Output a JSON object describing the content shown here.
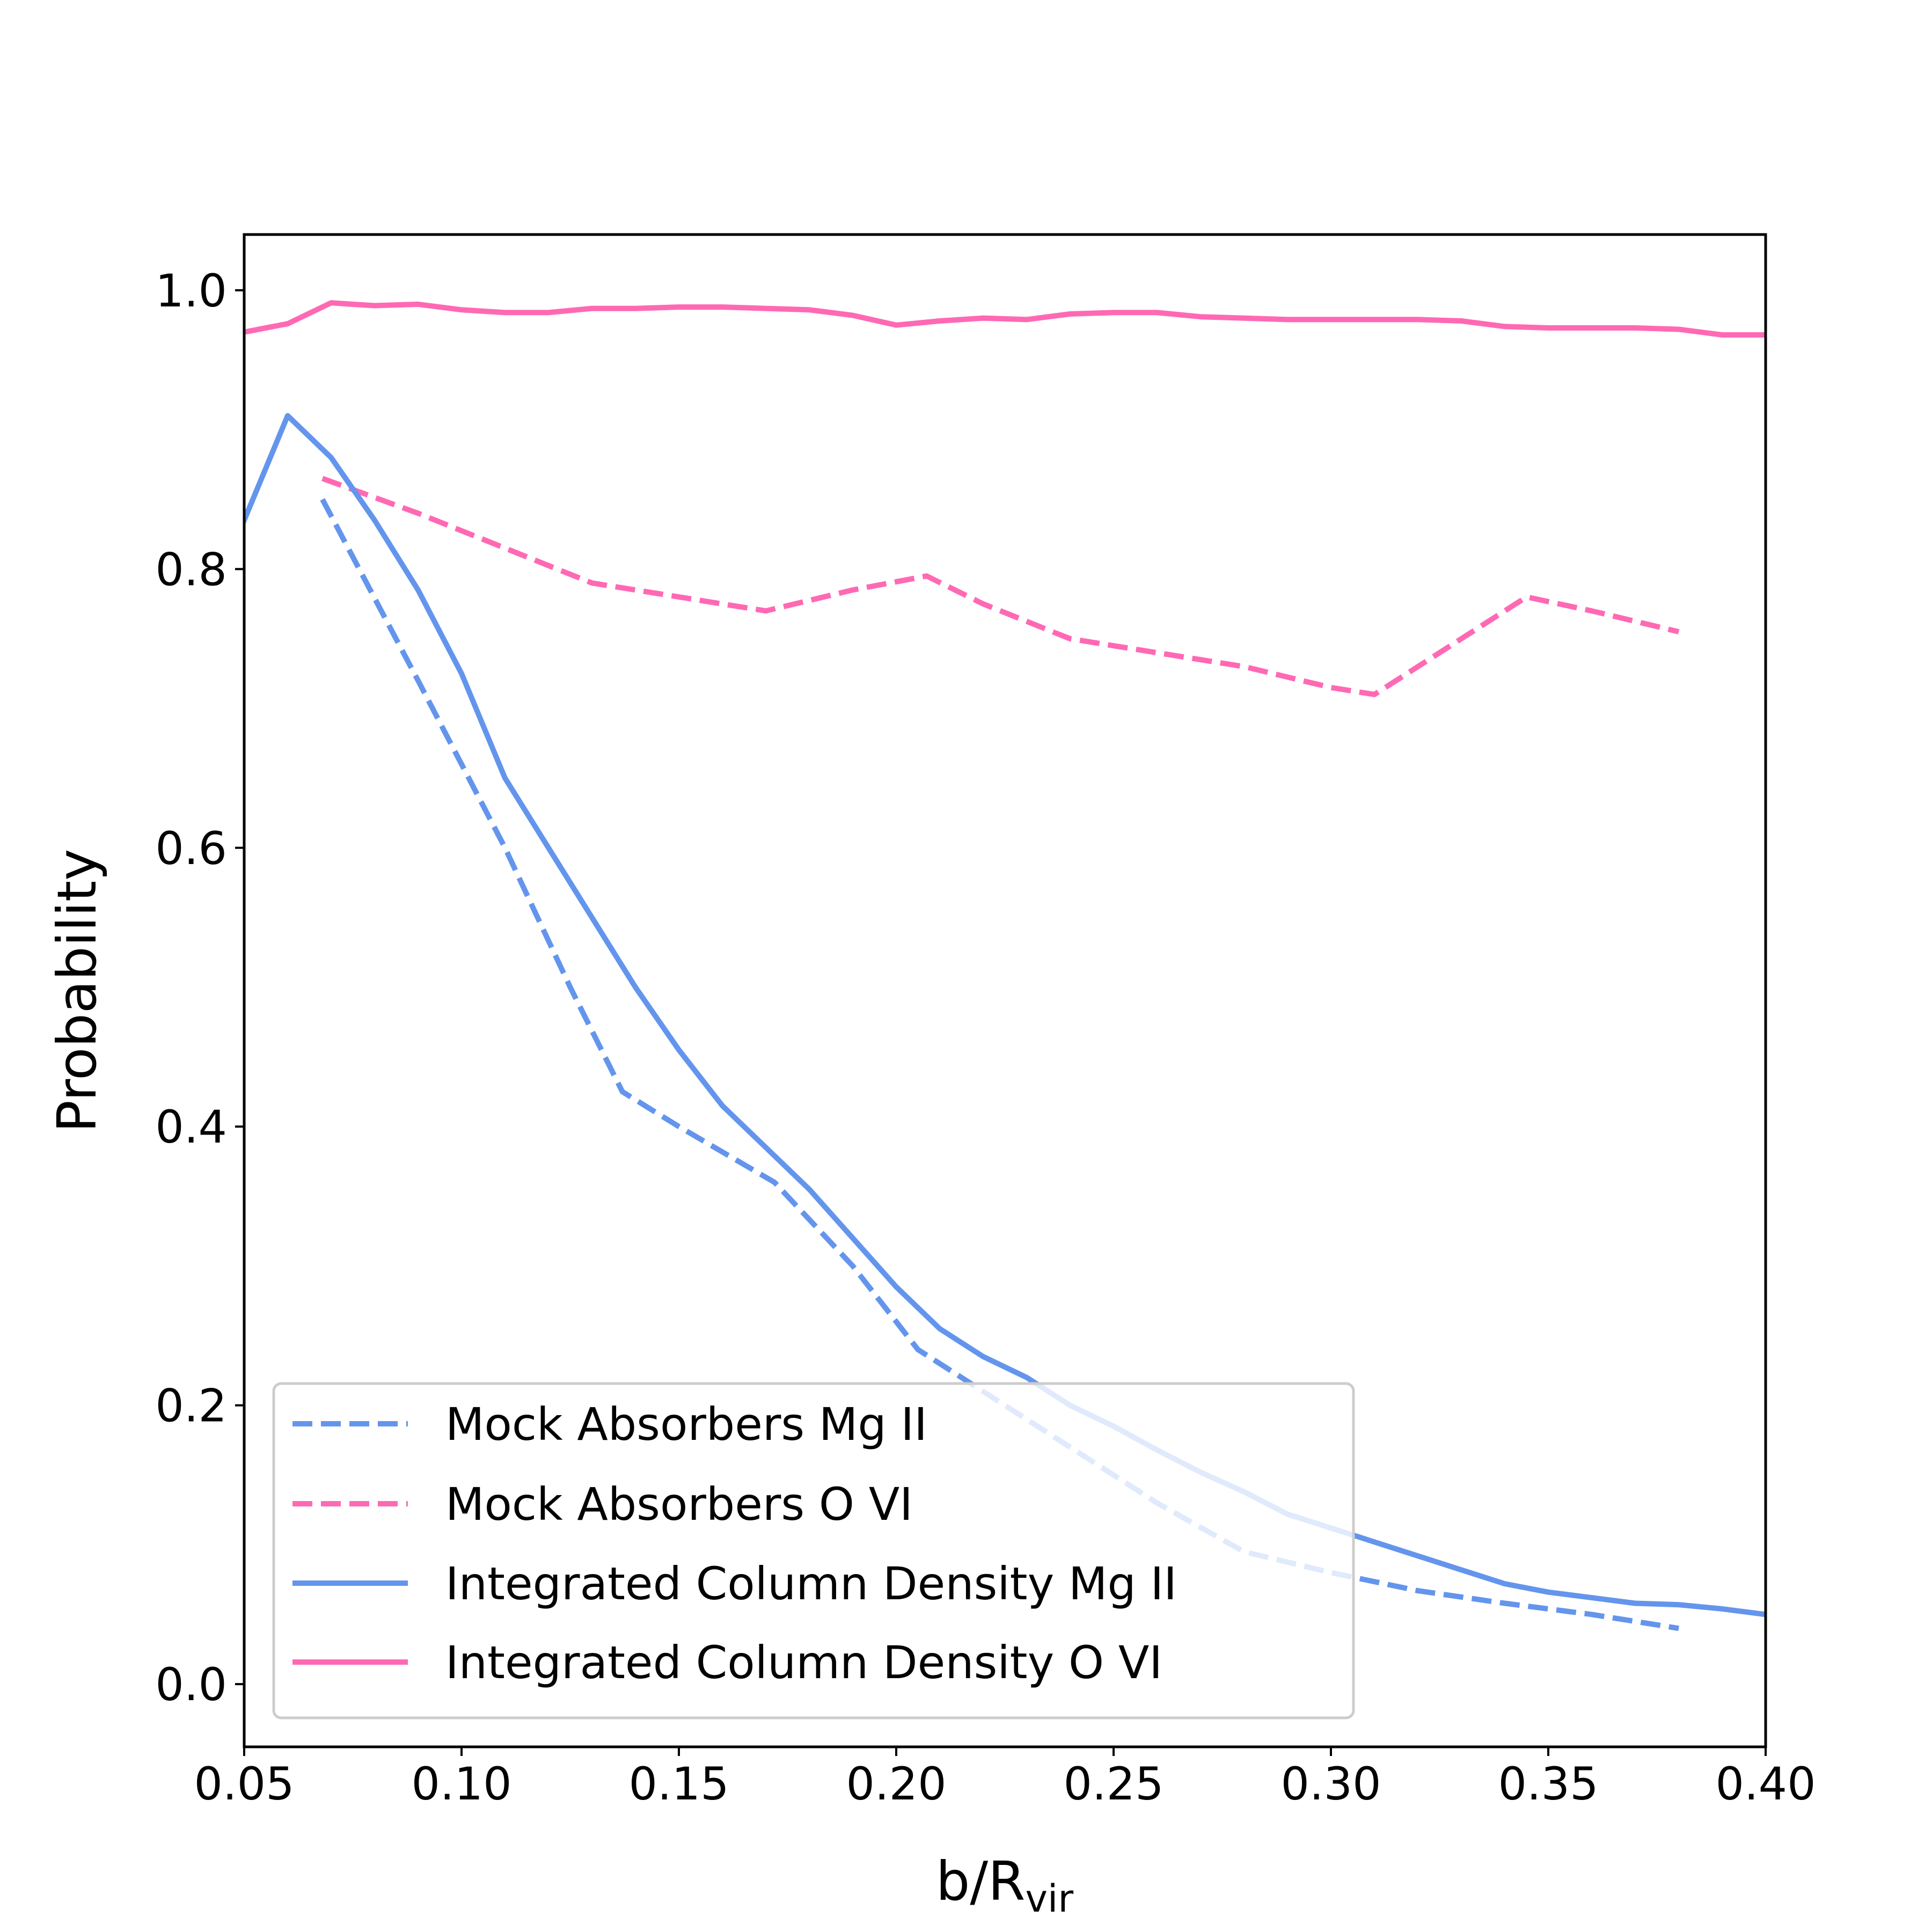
{
  "chart_data": {
    "type": "line",
    "title": "",
    "xlabel": "b/R",
    "xlabel_sub": "vir",
    "ylabel": "Probability",
    "xlim": [
      0.05,
      0.4
    ],
    "ylim": [
      -0.045,
      1.04
    ],
    "xticks": [
      "0.05",
      "0.10",
      "0.15",
      "0.20",
      "0.25",
      "0.30",
      "0.35",
      "0.40"
    ],
    "yticks": [
      "0.0",
      "0.2",
      "0.4",
      "0.6",
      "0.8",
      "1.0"
    ],
    "grid": false,
    "legend_position": "lower-left",
    "series": [
      {
        "name": "Mock Absorbers Mg II",
        "color": "#6495ED",
        "style": "dashed",
        "x": [
          0.068,
          0.09,
          0.11,
          0.125,
          0.137,
          0.15,
          0.172,
          0.19,
          0.205,
          0.22,
          0.24,
          0.26,
          0.28,
          0.3,
          0.32,
          0.34,
          0.36,
          0.38
        ],
        "y": [
          0.85,
          0.72,
          0.6,
          0.5,
          0.425,
          0.4,
          0.36,
          0.3,
          0.24,
          0.21,
          0.17,
          0.13,
          0.095,
          0.08,
          0.067,
          0.058,
          0.05,
          0.04
        ]
      },
      {
        "name": "Mock Absorbers O VI",
        "color": "#FF69B4",
        "style": "dashed",
        "x": [
          0.068,
          0.09,
          0.11,
          0.13,
          0.14,
          0.16,
          0.17,
          0.19,
          0.207,
          0.22,
          0.24,
          0.26,
          0.28,
          0.3,
          0.31,
          0.33,
          0.345,
          0.36,
          0.38
        ],
        "y": [
          0.865,
          0.84,
          0.815,
          0.79,
          0.785,
          0.775,
          0.77,
          0.785,
          0.795,
          0.775,
          0.75,
          0.74,
          0.73,
          0.715,
          0.71,
          0.75,
          0.78,
          0.77,
          0.755
        ]
      },
      {
        "name": "Integrated Column Density Mg II",
        "color": "#6495ED",
        "style": "solid",
        "x": [
          0.05,
          0.06,
          0.07,
          0.08,
          0.09,
          0.1,
          0.11,
          0.12,
          0.13,
          0.14,
          0.15,
          0.16,
          0.17,
          0.18,
          0.19,
          0.2,
          0.21,
          0.22,
          0.23,
          0.24,
          0.25,
          0.26,
          0.27,
          0.28,
          0.29,
          0.3,
          0.31,
          0.32,
          0.33,
          0.34,
          0.35,
          0.36,
          0.37,
          0.38,
          0.39,
          0.4
        ],
        "y": [
          0.835,
          0.91,
          0.88,
          0.835,
          0.785,
          0.725,
          0.65,
          0.6,
          0.55,
          0.5,
          0.455,
          0.415,
          0.385,
          0.355,
          0.32,
          0.285,
          0.255,
          0.235,
          0.22,
          0.2,
          0.185,
          0.168,
          0.152,
          0.138,
          0.122,
          0.112,
          0.102,
          0.092,
          0.082,
          0.072,
          0.066,
          0.062,
          0.058,
          0.057,
          0.054,
          0.05
        ]
      },
      {
        "name": "Integrated Column Density O VI",
        "color": "#FF69B4",
        "style": "solid",
        "x": [
          0.05,
          0.06,
          0.07,
          0.08,
          0.09,
          0.1,
          0.11,
          0.12,
          0.13,
          0.14,
          0.15,
          0.16,
          0.17,
          0.18,
          0.19,
          0.2,
          0.21,
          0.22,
          0.23,
          0.24,
          0.25,
          0.26,
          0.27,
          0.28,
          0.29,
          0.3,
          0.31,
          0.32,
          0.33,
          0.34,
          0.35,
          0.36,
          0.37,
          0.38,
          0.39,
          0.4
        ],
        "y": [
          0.97,
          0.976,
          0.991,
          0.989,
          0.99,
          0.986,
          0.984,
          0.984,
          0.987,
          0.987,
          0.988,
          0.988,
          0.987,
          0.986,
          0.982,
          0.975,
          0.978,
          0.98,
          0.979,
          0.983,
          0.984,
          0.984,
          0.981,
          0.98,
          0.979,
          0.979,
          0.979,
          0.979,
          0.978,
          0.974,
          0.973,
          0.973,
          0.973,
          0.972,
          0.968,
          0.968
        ]
      }
    ]
  }
}
